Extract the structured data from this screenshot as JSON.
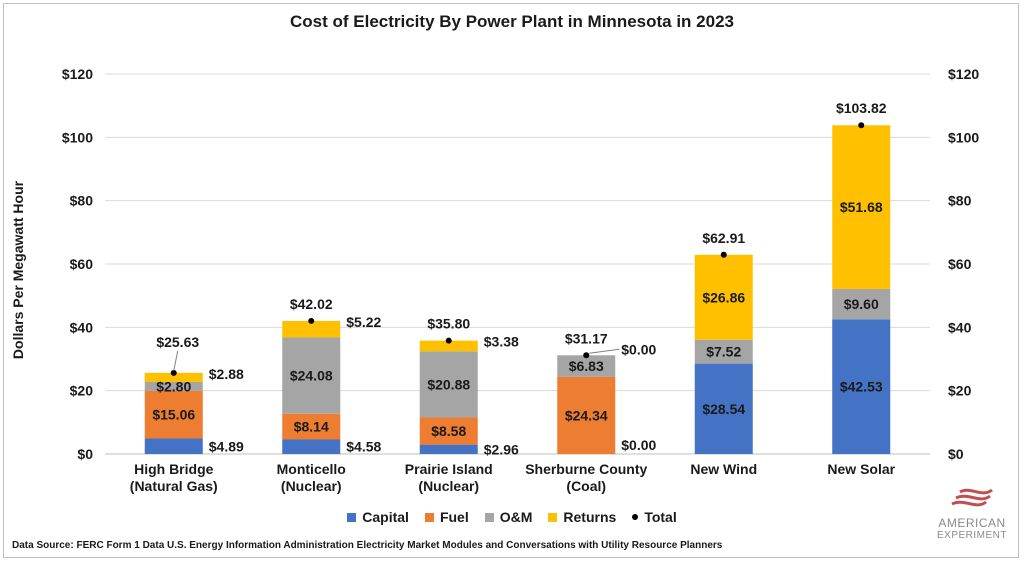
{
  "chart_data": {
    "type": "bar",
    "stacked": true,
    "title": "Cost of Electricity By Power Plant in Minnesota in 2023",
    "ylabel": "Dollars Per Megawatt Hour",
    "xlabel": "",
    "ylim": [
      0,
      120
    ],
    "yticks": [
      "$0",
      "$20",
      "$40",
      "$60",
      "$80",
      "$100",
      "$120"
    ],
    "grid": true,
    "legend_position": "bottom",
    "categories": [
      [
        "High Bridge",
        "(Natural Gas)"
      ],
      [
        "Monticello",
        "(Nuclear)"
      ],
      [
        "Prairie Island",
        "(Nuclear)"
      ],
      [
        "Sherburne County",
        "(Coal)"
      ],
      [
        "New Wind"
      ],
      [
        "New Solar"
      ]
    ],
    "series": [
      {
        "name": "Capital",
        "color": "#4472c4",
        "values": [
          4.89,
          4.58,
          2.96,
          0.0,
          28.54,
          42.53
        ],
        "labels": [
          "$4.89",
          "$4.58",
          "$2.96",
          "$0.00",
          "$28.54",
          "$42.53"
        ]
      },
      {
        "name": "Fuel",
        "color": "#ed7d31",
        "values": [
          15.06,
          8.14,
          8.58,
          24.34,
          0,
          0
        ],
        "labels": [
          "$15.06",
          "$8.14",
          "$8.58",
          "$24.34",
          "",
          ""
        ]
      },
      {
        "name": "O&M",
        "color": "#a5a5a5",
        "values": [
          2.8,
          24.08,
          20.88,
          6.83,
          7.52,
          9.6
        ],
        "labels": [
          "$2.80",
          "$24.08",
          "$20.88",
          "$6.83",
          "$7.52",
          "$9.60"
        ]
      },
      {
        "name": "Returns",
        "color": "#ffc000",
        "values": [
          2.88,
          5.22,
          3.38,
          0.0,
          26.86,
          51.68
        ],
        "labels": [
          "$2.88",
          "$5.22",
          "$3.38",
          "$0.00",
          "$26.86",
          "$51.68"
        ]
      }
    ],
    "totals": {
      "name": "Total",
      "values": [
        25.63,
        42.02,
        35.8,
        31.17,
        62.91,
        103.82
      ],
      "labels": [
        "$25.63",
        "$42.02",
        "$35.80",
        "$31.17",
        "$62.91",
        "$103.82"
      ]
    }
  },
  "legend": {
    "capital": "Capital",
    "fuel": "Fuel",
    "om": "O&M",
    "returns": "Returns",
    "total": "Total"
  },
  "source_text": "Data Source: FERC Form 1 Data  U.S. Energy Information Administration Electricity Market Modules and Conversations with Utility Resource Planners",
  "logo": {
    "line1": "AMERICAN",
    "line2": "EXPERIMENT"
  }
}
